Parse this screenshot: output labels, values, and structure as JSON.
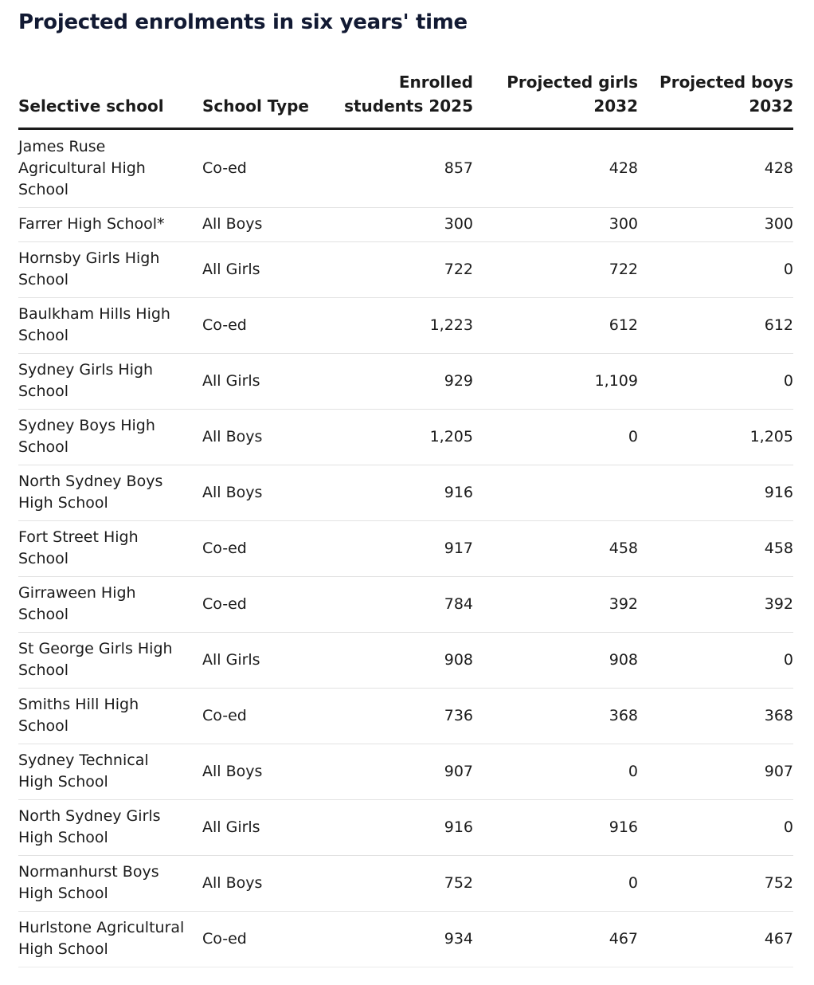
{
  "chart_data": {
    "type": "table",
    "title": "Projected enrolments in six years' time",
    "columns": [
      [
        "Selective school"
      ],
      [
        "School Type"
      ],
      [
        "Enrolled",
        "students 2025"
      ],
      [
        "Projected girls",
        "2032"
      ],
      [
        "Projected boys",
        "2032"
      ]
    ],
    "rows": [
      {
        "school": "James Ruse Agricultural High School",
        "type": "Co-ed",
        "enrolled_2025": "857",
        "girls_2032": "428",
        "boys_2032": "428"
      },
      {
        "school": "Farrer High School*",
        "type": "All Boys",
        "enrolled_2025": "300",
        "girls_2032": "300",
        "boys_2032": "300"
      },
      {
        "school": "Hornsby Girls High School",
        "type": "All Girls",
        "enrolled_2025": "722",
        "girls_2032": "722",
        "boys_2032": "0"
      },
      {
        "school": "Baulkham Hills High School",
        "type": "Co-ed",
        "enrolled_2025": "1,223",
        "girls_2032": "612",
        "boys_2032": "612"
      },
      {
        "school": "Sydney Girls High School",
        "type": "All Girls",
        "enrolled_2025": "929",
        "girls_2032": "1,109",
        "boys_2032": "0"
      },
      {
        "school": "Sydney Boys High School",
        "type": "All Boys",
        "enrolled_2025": "1,205",
        "girls_2032": "0",
        "boys_2032": "1,205"
      },
      {
        "school": "North Sydney Boys High School",
        "type": "All Boys",
        "enrolled_2025": "916",
        "girls_2032": "",
        "boys_2032": "916"
      },
      {
        "school": "Fort Street High School",
        "type": "Co-ed",
        "enrolled_2025": "917",
        "girls_2032": "458",
        "boys_2032": "458"
      },
      {
        "school": "Girraween High School",
        "type": "Co-ed",
        "enrolled_2025": "784",
        "girls_2032": "392",
        "boys_2032": "392"
      },
      {
        "school": "St George Girls High School",
        "type": "All Girls",
        "enrolled_2025": "908",
        "girls_2032": "908",
        "boys_2032": "0"
      },
      {
        "school": "Smiths Hill High School",
        "type": "Co-ed",
        "enrolled_2025": "736",
        "girls_2032": "368",
        "boys_2032": "368"
      },
      {
        "school": "Sydney Technical High School",
        "type": "All Boys",
        "enrolled_2025": "907",
        "girls_2032": "0",
        "boys_2032": "907"
      },
      {
        "school": "North Sydney Girls High School",
        "type": "All Girls",
        "enrolled_2025": "916",
        "girls_2032": "916",
        "boys_2032": "0"
      },
      {
        "school": "Normanhurst Boys High School",
        "type": "All Boys",
        "enrolled_2025": "752",
        "girls_2032": "0",
        "boys_2032": "752"
      },
      {
        "school": "Hurlstone Agricultural High School",
        "type": "Co-ed",
        "enrolled_2025": "934",
        "girls_2032": "467",
        "boys_2032": "467"
      }
    ]
  }
}
